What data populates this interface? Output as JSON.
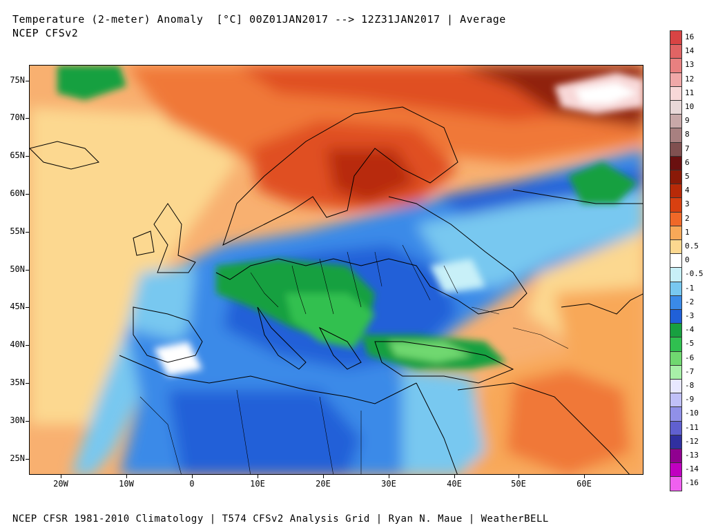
{
  "header": {
    "title": "Temperature (2-meter) Anomaly  [°C] 00Z01JAN2017 --> 12Z31JAN2017 | Average",
    "subtitle": "NCEP CFSv2"
  },
  "footer": {
    "text": "NCEP CFSR 1981-2010 Climatology | T574 CFSv2 Analysis Grid | Ryan N. Maue | WeatherBELL"
  },
  "axes": {
    "lat_labels": [
      "75N",
      "70N",
      "65N",
      "60N",
      "55N",
      "50N",
      "45N",
      "40N",
      "35N",
      "30N",
      "25N"
    ],
    "lon_labels": [
      "20W",
      "10W",
      "0",
      "10E",
      "20E",
      "30E",
      "40E",
      "50E",
      "60E"
    ]
  },
  "colorbar": {
    "labels": [
      "16",
      "14",
      "13",
      "12",
      "11",
      "10",
      "9",
      "8",
      "7",
      "6",
      "5",
      "4",
      "3",
      "2",
      "1",
      "0.5",
      "0",
      "-0.5",
      "-1",
      "-2",
      "-3",
      "-4",
      "-5",
      "-6",
      "-7",
      "-8",
      "-9",
      "-10",
      "-11",
      "-12",
      "-13",
      "-14",
      "-16"
    ],
    "colors": [
      "#d84444",
      "#e06464",
      "#e88080",
      "#f0a8a8",
      "#f8d8d8",
      "#e8d8d8",
      "#c8a8a8",
      "#a88080",
      "#805050",
      "#6a1010",
      "#8a1a08",
      "#b82a08",
      "#d84010",
      "#f06828",
      "#f8a858",
      "#fcd890",
      "#ffffff",
      "#c8f0f8",
      "#78c8f0",
      "#3a8ae8",
      "#2060d8",
      "#18a040",
      "#30c050",
      "#70d870",
      "#a8f0a8",
      "#e8e8ff",
      "#c0c0f8",
      "#9090e8",
      "#6060d0",
      "#3030a0",
      "#900090",
      "#c000c0",
      "#f060f0"
    ]
  }
}
